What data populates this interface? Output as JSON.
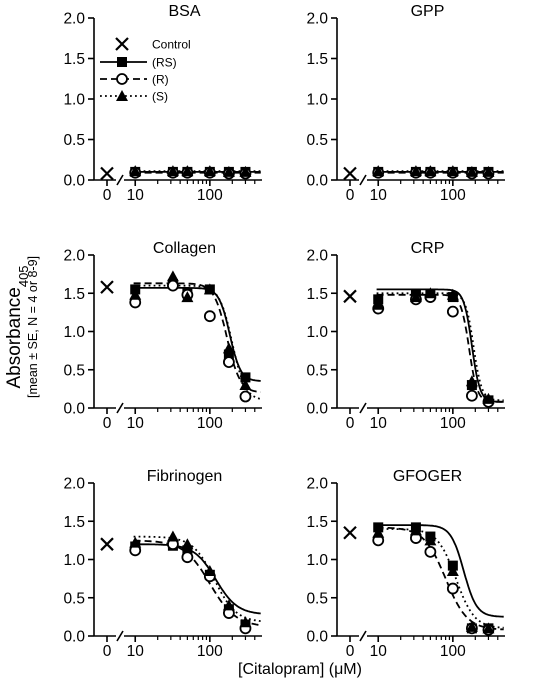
{
  "figure": {
    "ylabel_main": "Absorbance",
    "ylabel_sub": "405",
    "ylabel_note": "[mean ± SE, N = 4 or 8-9]",
    "xlabel": "[Citalopram] (μM)"
  },
  "legend": {
    "items": [
      {
        "label": "Control",
        "marker": "x",
        "line": "none"
      },
      {
        "label": "(RS)",
        "marker": "square",
        "line": "solid"
      },
      {
        "label": "(R)",
        "marker": "open-circle",
        "line": "dashed"
      },
      {
        "label": "(S)",
        "marker": "triangle",
        "line": "dotted"
      }
    ]
  },
  "chart_data": [
    {
      "type": "scatter",
      "title": "BSA",
      "xscale": "log",
      "xlim": [
        8,
        500
      ],
      "ylim": [
        0,
        2.0
      ],
      "xticks": [
        10,
        100
      ],
      "yticks": [
        0.0,
        0.5,
        1.0,
        1.5,
        2.0
      ],
      "control": 0.08,
      "series": [
        {
          "name": "(RS)",
          "marker": "square",
          "line": "solid",
          "x": [
            10,
            32,
            50,
            100,
            180,
            300
          ],
          "y": [
            0.1,
            0.1,
            0.1,
            0.1,
            0.1,
            0.1
          ],
          "fit": {
            "top": 0.1,
            "bottom": 0.1,
            "ic50": 150,
            "hill": 1
          }
        },
        {
          "name": "(R)",
          "marker": "open-circle",
          "line": "dashed",
          "x": [
            10,
            32,
            50,
            100,
            180,
            300
          ],
          "y": [
            0.09,
            0.09,
            0.09,
            0.09,
            0.08,
            0.08
          ],
          "fit": {
            "top": 0.09,
            "bottom": 0.09,
            "ic50": 150,
            "hill": 1
          }
        },
        {
          "name": "(S)",
          "marker": "triangle",
          "line": "dotted",
          "x": [
            10,
            32,
            50,
            100,
            180,
            300
          ],
          "y": [
            0.11,
            0.11,
            0.11,
            0.11,
            0.1,
            0.1
          ],
          "fit": {
            "top": 0.11,
            "bottom": 0.11,
            "ic50": 150,
            "hill": 1
          }
        }
      ]
    },
    {
      "type": "scatter",
      "title": "GPP",
      "xscale": "log",
      "xlim": [
        8,
        500
      ],
      "ylim": [
        0,
        2.0
      ],
      "xticks": [
        10,
        100
      ],
      "yticks": [
        0.0,
        0.5,
        1.0,
        1.5,
        2.0
      ],
      "control": 0.08,
      "series": [
        {
          "name": "(RS)",
          "marker": "square",
          "line": "solid",
          "x": [
            10,
            32,
            50,
            100,
            180,
            300
          ],
          "y": [
            0.1,
            0.1,
            0.1,
            0.1,
            0.1,
            0.1
          ],
          "fit": {
            "top": 0.1,
            "bottom": 0.1,
            "ic50": 150,
            "hill": 1
          }
        },
        {
          "name": "(R)",
          "marker": "open-circle",
          "line": "dashed",
          "x": [
            10,
            32,
            50,
            100,
            180,
            300
          ],
          "y": [
            0.09,
            0.09,
            0.09,
            0.09,
            0.08,
            0.08
          ],
          "fit": {
            "top": 0.09,
            "bottom": 0.09,
            "ic50": 150,
            "hill": 1
          }
        },
        {
          "name": "(S)",
          "marker": "triangle",
          "line": "dotted",
          "x": [
            10,
            32,
            50,
            100,
            180,
            300
          ],
          "y": [
            0.11,
            0.11,
            0.11,
            0.11,
            0.1,
            0.1
          ],
          "fit": {
            "top": 0.11,
            "bottom": 0.11,
            "ic50": 150,
            "hill": 1
          }
        }
      ]
    },
    {
      "type": "scatter",
      "title": "Collagen",
      "xscale": "log",
      "xlim": [
        8,
        500
      ],
      "ylim": [
        0,
        2.0
      ],
      "xticks": [
        10,
        100
      ],
      "yticks": [
        0.0,
        0.5,
        1.0,
        1.5,
        2.0
      ],
      "control": 1.58,
      "series": [
        {
          "name": "(RS)",
          "marker": "square",
          "line": "solid",
          "x": [
            10,
            32,
            50,
            100,
            180,
            300
          ],
          "y": [
            1.55,
            1.62,
            1.5,
            1.55,
            0.7,
            0.4
          ],
          "fit": {
            "top": 1.57,
            "bottom": 0.35,
            "ic50": 185,
            "hill": 6
          }
        },
        {
          "name": "(R)",
          "marker": "open-circle",
          "line": "dashed",
          "x": [
            10,
            32,
            50,
            100,
            180,
            300
          ],
          "y": [
            1.38,
            1.6,
            1.48,
            1.2,
            0.6,
            0.15
          ],
          "fit": {
            "top": 1.63,
            "bottom": 0.2,
            "ic50": 170,
            "hill": 5
          }
        },
        {
          "name": "(S)",
          "marker": "triangle",
          "line": "dotted",
          "x": [
            10,
            32,
            50,
            100,
            180,
            300
          ],
          "y": [
            1.48,
            1.72,
            1.45,
            1.55,
            0.78,
            0.3
          ],
          "fit": {
            "top": 1.6,
            "bottom": 0.1,
            "ic50": 200,
            "hill": 5
          }
        }
      ]
    },
    {
      "type": "scatter",
      "title": "CRP",
      "xscale": "log",
      "xlim": [
        8,
        500
      ],
      "ylim": [
        0,
        2.0
      ],
      "xticks": [
        10,
        100
      ],
      "yticks": [
        0.0,
        0.5,
        1.0,
        1.5,
        2.0
      ],
      "control": 1.46,
      "series": [
        {
          "name": "(RS)",
          "marker": "square",
          "line": "solid",
          "x": [
            10,
            32,
            50,
            100,
            180,
            300
          ],
          "y": [
            1.42,
            1.48,
            1.48,
            1.45,
            0.3,
            0.1
          ],
          "fit": {
            "top": 1.55,
            "bottom": 0.08,
            "ic50": 180,
            "hill": 8
          }
        },
        {
          "name": "(R)",
          "marker": "open-circle",
          "line": "dashed",
          "x": [
            10,
            32,
            50,
            100,
            180,
            300
          ],
          "y": [
            1.3,
            1.42,
            1.45,
            1.26,
            0.16,
            0.08
          ],
          "fit": {
            "top": 1.48,
            "bottom": 0.08,
            "ic50": 165,
            "hill": 8
          }
        },
        {
          "name": "(S)",
          "marker": "triangle",
          "line": "dotted",
          "x": [
            10,
            32,
            50,
            100,
            180,
            300
          ],
          "y": [
            1.35,
            1.45,
            1.5,
            1.48,
            0.35,
            0.12
          ],
          "fit": {
            "top": 1.5,
            "bottom": 0.1,
            "ic50": 190,
            "hill": 8
          }
        }
      ]
    },
    {
      "type": "scatter",
      "title": "Fibrinogen",
      "xscale": "log",
      "xlim": [
        8,
        500
      ],
      "ylim": [
        0,
        2.0
      ],
      "xticks": [
        10,
        100
      ],
      "yticks": [
        0.0,
        0.5,
        1.0,
        1.5,
        2.0
      ],
      "control": 1.2,
      "series": [
        {
          "name": "(RS)",
          "marker": "square",
          "line": "solid",
          "x": [
            10,
            32,
            50,
            100,
            180,
            300
          ],
          "y": [
            1.17,
            1.18,
            1.12,
            0.8,
            0.35,
            0.15
          ],
          "fit": {
            "top": 1.2,
            "bottom": 0.28,
            "ic50": 120,
            "hill": 3
          }
        },
        {
          "name": "(R)",
          "marker": "open-circle",
          "line": "dashed",
          "x": [
            10,
            32,
            50,
            100,
            180,
            300
          ],
          "y": [
            1.12,
            1.2,
            1.03,
            0.78,
            0.3,
            0.1
          ],
          "fit": {
            "top": 1.25,
            "bottom": 0.12,
            "ic50": 100,
            "hill": 2.5
          }
        },
        {
          "name": "(S)",
          "marker": "triangle",
          "line": "dotted",
          "x": [
            10,
            32,
            50,
            100,
            180,
            300
          ],
          "y": [
            1.22,
            1.3,
            1.2,
            0.85,
            0.4,
            0.18
          ],
          "fit": {
            "top": 1.3,
            "bottom": 0.18,
            "ic50": 115,
            "hill": 3
          }
        }
      ]
    },
    {
      "type": "scatter",
      "title": "GFOGER",
      "xscale": "log",
      "xlim": [
        8,
        500
      ],
      "ylim": [
        0,
        2.0
      ],
      "xticks": [
        10,
        100
      ],
      "yticks": [
        0.0,
        0.5,
        1.0,
        1.5,
        2.0
      ],
      "control": 1.35,
      "series": [
        {
          "name": "(RS)",
          "marker": "square",
          "line": "solid",
          "x": [
            10,
            32,
            50,
            100,
            180,
            300
          ],
          "y": [
            1.42,
            1.42,
            1.3,
            0.92,
            0.1,
            0.1
          ],
          "fit": {
            "top": 1.45,
            "bottom": 0.25,
            "ic50": 140,
            "hill": 5
          }
        },
        {
          "name": "(R)",
          "marker": "open-circle",
          "line": "dashed",
          "x": [
            10,
            32,
            50,
            100,
            180,
            300
          ],
          "y": [
            1.25,
            1.28,
            1.1,
            0.62,
            0.1,
            0.08
          ],
          "fit": {
            "top": 1.42,
            "bottom": 0.08,
            "ic50": 80,
            "hill": 3
          }
        },
        {
          "name": "(S)",
          "marker": "triangle",
          "line": "dotted",
          "x": [
            10,
            32,
            50,
            100,
            180,
            300
          ],
          "y": [
            1.35,
            1.38,
            1.25,
            0.85,
            0.12,
            0.1
          ],
          "fit": {
            "top": 1.4,
            "bottom": 0.1,
            "ic50": 110,
            "hill": 3.5
          }
        }
      ]
    }
  ]
}
